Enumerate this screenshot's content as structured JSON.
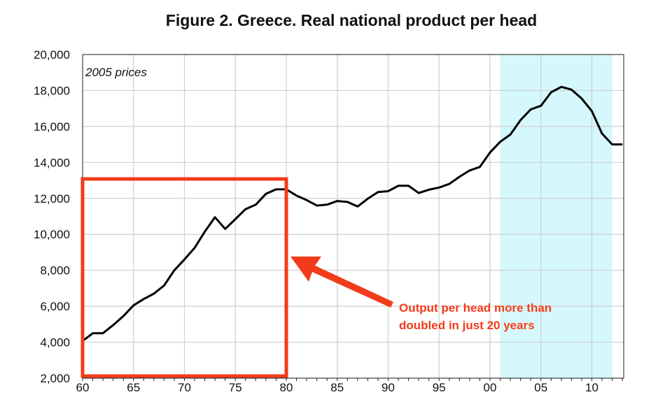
{
  "chart_data": {
    "type": "line",
    "title": "Figure 2. Greece. Real national product per head",
    "note": "2005 prices",
    "xlabel": "",
    "ylabel": "",
    "xlim": [
      1960,
      2013
    ],
    "ylim": [
      2000,
      20000
    ],
    "grid": true,
    "y_ticks": [
      2000,
      4000,
      6000,
      8000,
      10000,
      12000,
      14000,
      16000,
      18000,
      20000
    ],
    "y_tick_labels": [
      "2,000",
      "4,000",
      "6,000",
      "8,000",
      "10,000",
      "12,000",
      "14,000",
      "16,000",
      "18,000",
      "20,000"
    ],
    "x_ticks": [
      1960,
      1965,
      1970,
      1975,
      1980,
      1985,
      1990,
      1995,
      2000,
      2005,
      2010
    ],
    "x_tick_labels": [
      "60",
      "65",
      "70",
      "75",
      "80",
      "85",
      "90",
      "95",
      "00",
      "05",
      "10"
    ],
    "shaded_period": [
      2001,
      2012
    ],
    "shade_color": "#d4f8fb",
    "line_color": "#000000",
    "x": [
      1960,
      1961,
      1962,
      1963,
      1964,
      1965,
      1966,
      1967,
      1968,
      1969,
      1970,
      1971,
      1972,
      1973,
      1974,
      1975,
      1976,
      1977,
      1978,
      1979,
      1980,
      1981,
      1982,
      1983,
      1984,
      1985,
      1986,
      1987,
      1988,
      1989,
      1990,
      1991,
      1992,
      1993,
      1994,
      1995,
      1996,
      1997,
      1998,
      1999,
      2000,
      2001,
      2002,
      2003,
      2004,
      2005,
      2006,
      2007,
      2008,
      2009,
      2010,
      2011,
      2012,
      2013
    ],
    "values": [
      4070,
      4500,
      4500,
      4950,
      5450,
      6050,
      6400,
      6700,
      7150,
      8000,
      8600,
      9250,
      10150,
      10950,
      10300,
      10850,
      11400,
      11650,
      12250,
      12500,
      12500,
      12150,
      11900,
      11600,
      11650,
      11850,
      11800,
      11550,
      11980,
      12350,
      12400,
      12700,
      12700,
      12300,
      12480,
      12600,
      12800,
      13200,
      13550,
      13750,
      14550,
      15150,
      15550,
      16350,
      16950,
      17150,
      17900,
      18200,
      18050,
      17550,
      16850,
      15600,
      15000,
      15000
    ],
    "annotation": {
      "lines": [
        "Output per head more than",
        "doubled in just 20 years"
      ],
      "highlight_period": [
        1960,
        1980
      ],
      "color": "#f23b1a"
    }
  }
}
